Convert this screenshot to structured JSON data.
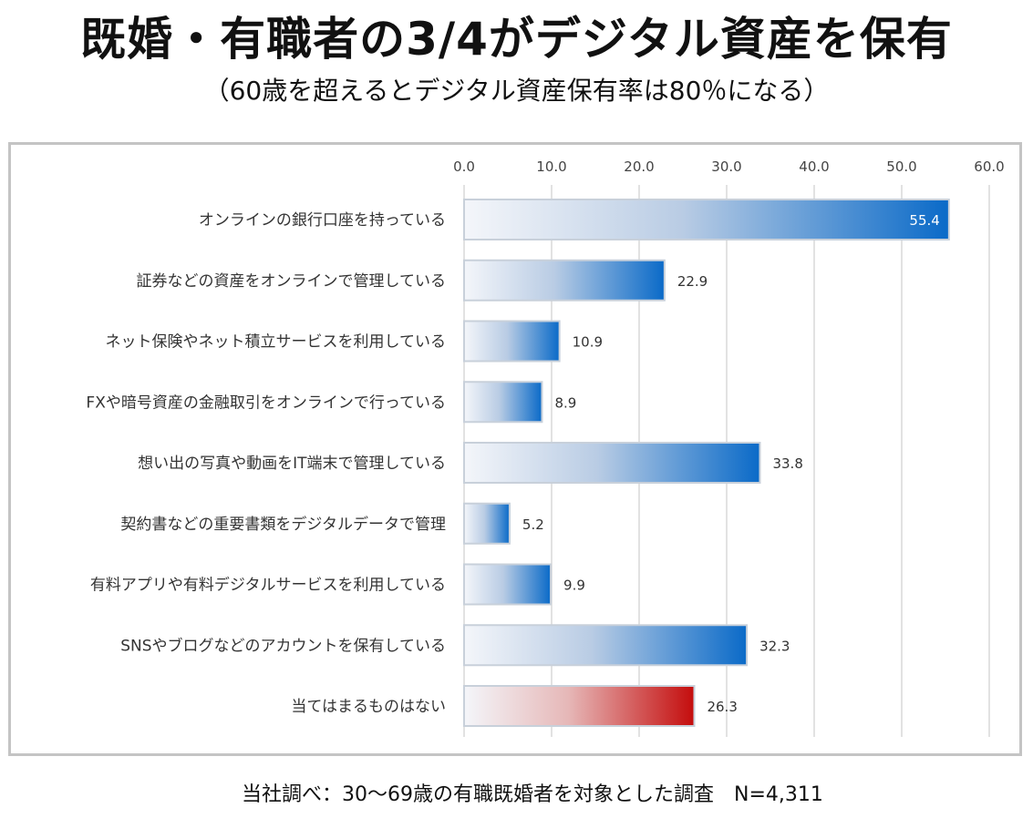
{
  "header": {
    "title": "既婚・有職者の3/4がデジタル資産を保有",
    "subtitle": "（60歳を超えるとデジタル資産保有率は80％になる）"
  },
  "footnote": "当社調べ：30～69歳の有職既婚者を対象とした調査　N=4,311",
  "colors": {
    "blue": "#0a6ac8",
    "red": "#c40c0c",
    "bar_start": "#f4f6fa",
    "bar_border": "#c8d0da",
    "gridline": "#d9d9d9",
    "frame": "#c4c4c4"
  },
  "chart_data": {
    "type": "bar",
    "orientation": "horizontal",
    "title": "",
    "xlabel": "",
    "ylabel": "",
    "xlim": [
      0,
      60
    ],
    "ticks": [
      "0.0",
      "10.0",
      "20.0",
      "30.0",
      "40.0",
      "50.0",
      "60.0"
    ],
    "tick_values": [
      0,
      10,
      20,
      30,
      40,
      50,
      60
    ],
    "grid": "vertical",
    "axis_position": "top",
    "categories": [
      "オンラインの銀行口座を持っている",
      "証券などの資産をオンラインで管理している",
      "ネット保険やネット積立サービスを利用している",
      "FXや暗号資産の金融取引をオンラインで行っている",
      "想い出の写真や動画をIT端末で管理している",
      "契約書などの重要書類をデジタルデータで管理",
      "有料アプリや有料デジタルサービスを利用している",
      "SNSやブログなどのアカウントを保有している",
      "当てはまるものはない"
    ],
    "values": [
      55.4,
      22.9,
      10.9,
      8.9,
      33.8,
      5.2,
      9.9,
      32.3,
      26.3
    ],
    "value_labels": [
      "55.4",
      "22.9",
      "10.9",
      "8.9",
      "33.8",
      "5.2",
      "9.9",
      "32.3",
      "26.3"
    ],
    "bar_colors": [
      "blue",
      "blue",
      "blue",
      "blue",
      "blue",
      "blue",
      "blue",
      "blue",
      "red"
    ]
  }
}
